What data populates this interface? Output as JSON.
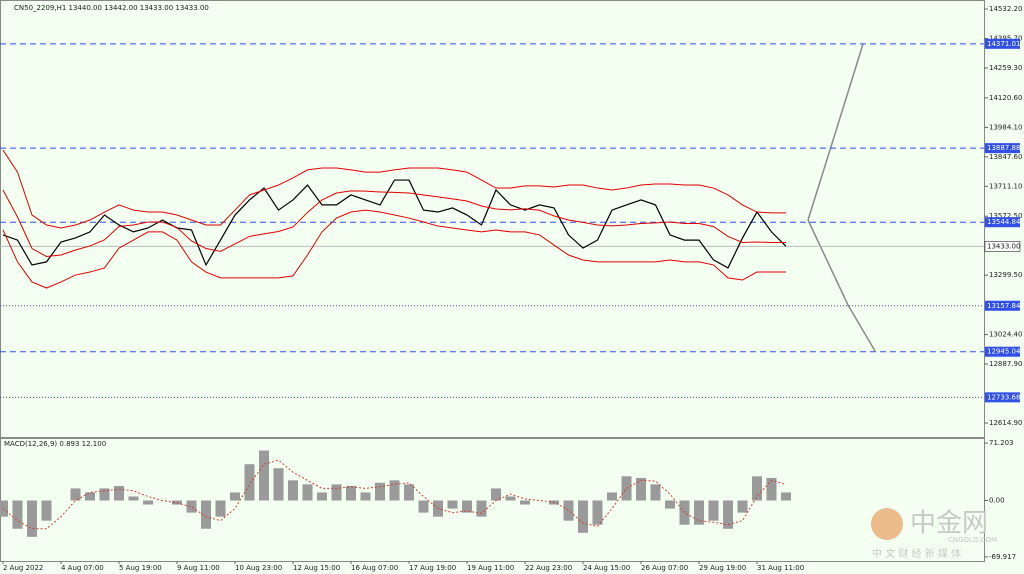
{
  "chart_data": [
    {
      "type": "line",
      "title": "CN50_2209,H1  13440.00 13442.00 13433.00 13433.00",
      "categories": [
        "2 Aug 2022",
        null,
        null,
        null,
        "4 Aug 07:00",
        null,
        null,
        null,
        "5 Aug 19:00",
        null,
        null,
        null,
        "9 Aug 11:00",
        null,
        null,
        null,
        "10 Aug 23:00",
        null,
        null,
        null,
        "12 Aug 15:00",
        null,
        null,
        null,
        "16 Aug 07:00",
        null,
        null,
        null,
        "17 Aug 19:00",
        null,
        null,
        null,
        "19 Aug 11:00",
        null,
        null,
        null,
        "22 Aug 23:00",
        null,
        null,
        null,
        "24 Aug 15:00",
        null,
        null,
        null,
        "26 Aug 07:00",
        null,
        null,
        null,
        "29 Aug 19:00",
        null,
        null,
        null,
        "31 Aug 11:00",
        null,
        null
      ],
      "series": [
        {
          "color": "#000000",
          "values": [
            13486,
            13462,
            13347,
            13361,
            13453,
            13472,
            13500,
            13578,
            13532,
            13500,
            13518,
            13555,
            13518,
            13509,
            13347,
            13462,
            13578,
            13648,
            13703,
            13601,
            13648,
            13717,
            13625,
            13625,
            13671,
            13648,
            13625,
            13740,
            13740,
            13601,
            13592,
            13611,
            13578,
            13532,
            13694,
            13625,
            13601,
            13625,
            13611,
            13486,
            13425,
            13462,
            13601,
            13625,
            13648,
            13625,
            13486,
            13462,
            13462,
            13370,
            13333,
            13472,
            13592,
            13500,
            13433
          ]
        },
        {
          "color": "#e00000",
          "values": [
            13879,
            13777,
            13578,
            13532,
            13518,
            13532,
            13555,
            13592,
            13625,
            13601,
            13592,
            13592,
            13578,
            13555,
            13532,
            13532,
            13601,
            13671,
            13694,
            13717,
            13750,
            13787,
            13796,
            13796,
            13787,
            13777,
            13777,
            13787,
            13796,
            13796,
            13796,
            13787,
            13777,
            13740,
            13703,
            13703,
            13713,
            13713,
            13708,
            13717,
            13717,
            13703,
            13694,
            13703,
            13717,
            13722,
            13722,
            13717,
            13717,
            13703,
            13671,
            13625,
            13592,
            13588,
            13588
          ]
        },
        {
          "color": "#e00000",
          "values": [
            13694,
            13569,
            13423,
            13386,
            13393,
            13416,
            13435,
            13463,
            13525,
            13532,
            13546,
            13546,
            13520,
            13458,
            13423,
            13410,
            13444,
            13479,
            13491,
            13502,
            13523,
            13590,
            13648,
            13680,
            13690,
            13689,
            13685,
            13683,
            13680,
            13671,
            13662,
            13653,
            13643,
            13620,
            13606,
            13602,
            13607,
            13600,
            13574,
            13555,
            13544,
            13532,
            13528,
            13532,
            13539,
            13542,
            13546,
            13539,
            13539,
            13525,
            13479,
            13451,
            13453,
            13451,
            13451
          ]
        },
        {
          "color": "#e00000",
          "values": [
            13509,
            13361,
            13268,
            13240,
            13268,
            13300,
            13314,
            13333,
            13425,
            13462,
            13500,
            13500,
            13462,
            13361,
            13314,
            13287,
            13287,
            13287,
            13287,
            13287,
            13296,
            13393,
            13500,
            13564,
            13592,
            13601,
            13592,
            13578,
            13564,
            13546,
            13527,
            13518,
            13509,
            13500,
            13509,
            13500,
            13500,
            13486,
            13439,
            13393,
            13370,
            13361,
            13361,
            13361,
            13361,
            13361,
            13370,
            13361,
            13361,
            13347,
            13287,
            13277,
            13314,
            13314,
            13314
          ]
        }
      ],
      "ylim": [
        12550,
        14574
      ],
      "yticks": [
        {
          "value": 14532.2,
          "label": "14532.20"
        },
        {
          "value": 14395.7,
          "label": "14395.70"
        },
        {
          "value": 14259.3,
          "label": "14259.30"
        },
        {
          "value": 14120.6,
          "label": "14120.60"
        },
        {
          "value": 13984.1,
          "label": "13984.10"
        },
        {
          "value": 13847.6,
          "label": "13847.60"
        },
        {
          "value": 13711.1,
          "label": "13711.10"
        },
        {
          "value": 13572.5,
          "label": "13572.50"
        },
        {
          "value": 13299.5,
          "label": "13299.50"
        },
        {
          "value": 13024.4,
          "label": "13024.40"
        },
        {
          "value": 12887.9,
          "label": "12887.90"
        },
        {
          "value": 12614.9,
          "label": "12614.90"
        }
      ],
      "levels": [
        {
          "value": 14371.01,
          "style": "dashed"
        },
        {
          "value": 13887.88,
          "style": "dashed"
        },
        {
          "value": 13544.84,
          "style": "dashed"
        },
        {
          "value": 13157.84,
          "style": "dotted"
        },
        {
          "value": 12945.04,
          "style": "dashed"
        },
        {
          "value": 12733.68,
          "style": "dotted"
        }
      ],
      "level_color": "#3050e8",
      "last": {
        "value": 13433,
        "label": "13433.00"
      }
    },
    {
      "type": "bar",
      "title": "MACD(12,26,9) 0.893 12.100",
      "color": "#9a9a9a",
      "values": [
        -20,
        -35,
        -45,
        -25,
        0,
        15,
        10,
        15,
        18,
        5,
        -5,
        0,
        -5,
        -15,
        -35,
        -20,
        10,
        45,
        62,
        40,
        25,
        20,
        10,
        20,
        18,
        10,
        22,
        25,
        20,
        -15,
        -20,
        -10,
        -15,
        -20,
        15,
        5,
        -5,
        0,
        -5,
        -25,
        -40,
        -30,
        10,
        30,
        28,
        20,
        -10,
        -30,
        -30,
        -25,
        -35,
        -15,
        30,
        28,
        10
      ],
      "signal": {
        "color": "#d04030",
        "values": [
          -10,
          -25,
          -35,
          -35,
          -20,
          0,
          10,
          12,
          14,
          12,
          5,
          0,
          -3,
          -8,
          -20,
          -25,
          -10,
          20,
          45,
          50,
          35,
          25,
          15,
          15,
          17,
          15,
          17,
          20,
          22,
          5,
          -10,
          -15,
          -13,
          -16,
          0,
          8,
          2,
          0,
          -2,
          -12,
          -28,
          -32,
          -10,
          15,
          25,
          24,
          8,
          -15,
          -25,
          -27,
          -30,
          -25,
          5,
          25,
          20
        ]
      },
      "ylim": [
        -75,
        77.5
      ],
      "yticks": [
        71.203,
        {
          "value": 0,
          "label": "0.00"
        },
        -69.917
      ]
    }
  ],
  "watermark": {
    "brand": "中金网",
    "site": "CNGOLD.COM",
    "slogan": "中 文 财 经 新 媒 体"
  }
}
